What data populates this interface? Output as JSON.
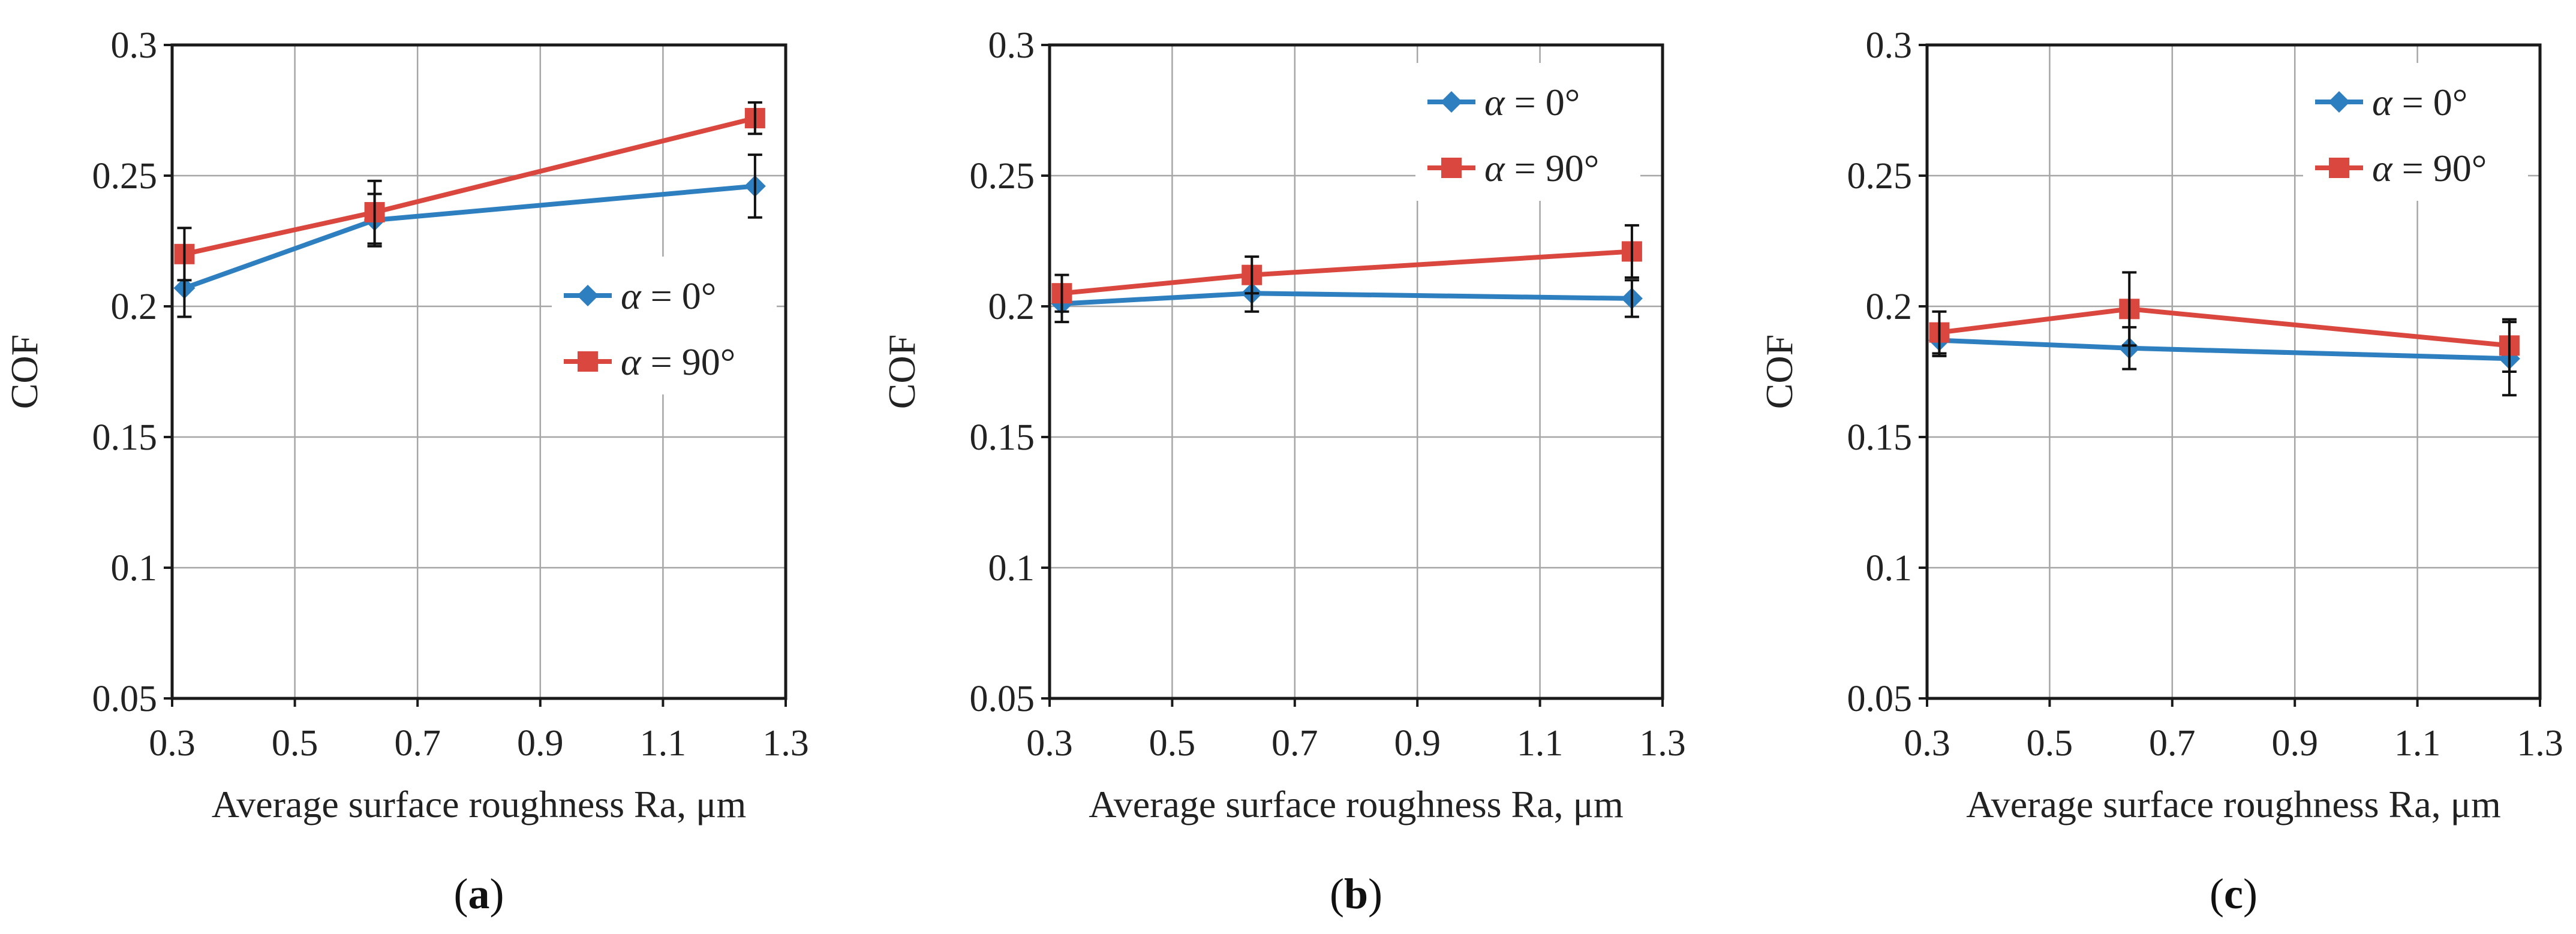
{
  "colors": {
    "alpha0": "#2e7fbf",
    "alpha90": "#d9473f"
  },
  "chart_data": [
    {
      "type": "line",
      "panel_label": {
        "open": "(",
        "letter": "a",
        "close": ")"
      },
      "xlabel": "Average surface roughness Ra, μm",
      "ylabel": "COF",
      "xlim": [
        0.3,
        1.3
      ],
      "ylim": [
        0.05,
        0.3
      ],
      "xticks": [
        0.3,
        0.5,
        0.7,
        0.9,
        1.1,
        1.3
      ],
      "xtick_labels": [
        "0.3",
        "0.5",
        "0.7",
        "0.9",
        "1.1",
        "1.3"
      ],
      "yticks": [
        0.05,
        0.1,
        0.15,
        0.2,
        0.25,
        0.3
      ],
      "ytick_labels": [
        "0.05",
        "0.1",
        "0.15",
        "0.2",
        "0.25",
        "0.3"
      ],
      "grid": true,
      "legend": "center-right",
      "series": [
        {
          "name": "α = 0°",
          "greek": "α",
          "rest": " = 0°",
          "marker": "diamond",
          "color": "#2e7fbf",
          "x": [
            0.32,
            0.63,
            1.25
          ],
          "y": [
            0.207,
            0.233,
            0.246
          ],
          "err": [
            0.011,
            0.01,
            0.012
          ]
        },
        {
          "name": "α = 90°",
          "greek": "α",
          "rest": " = 90°",
          "marker": "square",
          "color": "#d9473f",
          "x": [
            0.32,
            0.63,
            1.25
          ],
          "y": [
            0.22,
            0.236,
            0.272
          ],
          "err": [
            0.01,
            0.012,
            0.006
          ]
        }
      ]
    },
    {
      "type": "line",
      "panel_label": {
        "open": "(",
        "letter": "b",
        "close": ")"
      },
      "xlabel": "Average surface roughness Ra, μm",
      "ylabel": "COF",
      "xlim": [
        0.3,
        1.3
      ],
      "ylim": [
        0.05,
        0.3
      ],
      "xticks": [
        0.3,
        0.5,
        0.7,
        0.9,
        1.1,
        1.3
      ],
      "xtick_labels": [
        "0.3",
        "0.5",
        "0.7",
        "0.9",
        "1.1",
        "1.3"
      ],
      "yticks": [
        0.05,
        0.1,
        0.15,
        0.2,
        0.25,
        0.3
      ],
      "ytick_labels": [
        "0.05",
        "0.1",
        "0.15",
        "0.2",
        "0.25",
        "0.3"
      ],
      "grid": true,
      "legend": "top-right",
      "series": [
        {
          "name": "α = 0°",
          "greek": "α",
          "rest": " = 0°",
          "marker": "diamond",
          "color": "#2e7fbf",
          "x": [
            0.32,
            0.63,
            1.25
          ],
          "y": [
            0.201,
            0.205,
            0.203
          ],
          "err": [
            0.007,
            0.007,
            0.007
          ]
        },
        {
          "name": "α = 90°",
          "greek": "α",
          "rest": " = 90°",
          "marker": "square",
          "color": "#d9473f",
          "x": [
            0.32,
            0.63,
            1.25
          ],
          "y": [
            0.205,
            0.212,
            0.221
          ],
          "err": [
            0.007,
            0.007,
            0.01
          ]
        }
      ]
    },
    {
      "type": "line",
      "panel_label": {
        "open": "(",
        "letter": "c",
        "close": ")"
      },
      "xlabel": "Average surface roughness Ra, μm",
      "ylabel": "COF",
      "xlim": [
        0.3,
        1.3
      ],
      "ylim": [
        0.05,
        0.3
      ],
      "xticks": [
        0.3,
        0.5,
        0.7,
        0.9,
        1.1,
        1.3
      ],
      "xtick_labels": [
        "0.3",
        "0.5",
        "0.7",
        "0.9",
        "1.1",
        "1.3"
      ],
      "yticks": [
        0.05,
        0.1,
        0.15,
        0.2,
        0.25,
        0.3
      ],
      "ytick_labels": [
        "0.05",
        "0.1",
        "0.15",
        "0.2",
        "0.25",
        "0.3"
      ],
      "grid": true,
      "legend": "top-right",
      "series": [
        {
          "name": "α = 0°",
          "greek": "α",
          "rest": " = 0°",
          "marker": "diamond",
          "color": "#2e7fbf",
          "x": [
            0.32,
            0.63,
            1.25
          ],
          "y": [
            0.187,
            0.184,
            0.18
          ],
          "err": [
            0.006,
            0.008,
            0.014
          ]
        },
        {
          "name": "α = 90°",
          "greek": "α",
          "rest": " = 90°",
          "marker": "square",
          "color": "#d9473f",
          "x": [
            0.32,
            0.63,
            1.25
          ],
          "y": [
            0.19,
            0.199,
            0.185
          ],
          "err": [
            0.008,
            0.014,
            0.01
          ]
        }
      ]
    }
  ]
}
